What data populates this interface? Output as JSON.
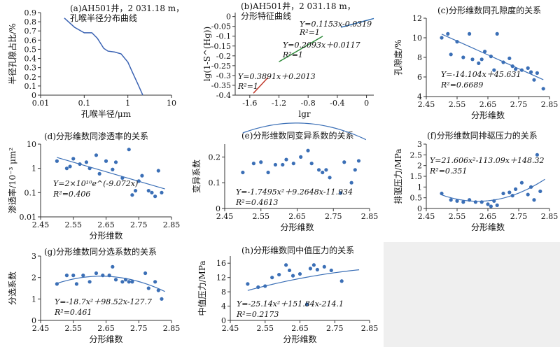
{
  "chart_data": [
    {
      "id": "a",
      "type": "line",
      "title": "(a)AH501井，2 031.18 m，",
      "subtitle": "孔喉半径分布曲线",
      "xlabel": "孔喉半径/μm",
      "ylabel": "半径孔隙占比/%",
      "xscale": "log",
      "xlim": [
        0.01,
        10
      ],
      "ylim": [
        0,
        0.9
      ],
      "xticks": [
        "0.01",
        "0.1",
        "1",
        "10"
      ],
      "yticks": [
        "0",
        "0.1",
        "0.2",
        "0.3",
        "0.4",
        "0.5",
        "0.6",
        "0.7",
        "0.8",
        "0.9"
      ],
      "series": [
        {
          "x": [
            0.035,
            0.06,
            0.1,
            0.15,
            0.2,
            0.28,
            0.35,
            0.5,
            0.7,
            1.0,
            1.3,
            1.7,
            2.2
          ],
          "y": [
            0.84,
            0.74,
            0.68,
            0.68,
            0.62,
            0.51,
            0.48,
            0.47,
            0.45,
            0.36,
            0.24,
            0.12,
            0.0
          ]
        }
      ]
    },
    {
      "id": "b",
      "type": "line",
      "title": "(b)AH501井，2 031.18 m，",
      "subtitle": "分形特征曲线",
      "xlabel": "lgr",
      "ylabel": "lg(1-S^(Hg))",
      "xlim": [
        -1.8,
        0.1
      ],
      "ylim": [
        -0.4,
        0.02
      ],
      "xticks": [
        "-1.6",
        "-1.2",
        "-0.8",
        "-0.4",
        "0"
      ],
      "yticks": [
        "0",
        "-0.05",
        "-0.1",
        "-0.15",
        "-0.2",
        "-0.25",
        "-0.3",
        "-0.35",
        "-0.4"
      ],
      "series": [
        {
          "color": "#c0392b",
          "x": [
            -1.55,
            -1.35
          ],
          "y": [
            -0.39,
            -0.31
          ]
        },
        {
          "color": "#2e8b3a",
          "x": [
            -1.2,
            -0.6
          ],
          "y": [
            -0.23,
            -0.1
          ]
        },
        {
          "color": "#2f6fb5",
          "x": [
            -0.35,
            0.1
          ],
          "y": [
            -0.055,
            -0.01
          ]
        }
      ],
      "equations": [
        {
          "eq": "Y=0.1153x-0.0319",
          "r2": "R²=1"
        },
        {
          "eq": "Y=0.2093x＋0.0117",
          "r2": "R²=1"
        },
        {
          "eq": "Y=0.3891x＋0.2013",
          "r2": "R²=1"
        }
      ]
    },
    {
      "id": "c",
      "type": "scatter",
      "title": "(c)分形维数同孔隙度的关系",
      "xlabel": "分形维数",
      "ylabel": "孔隙度/%",
      "xlim": [
        2.45,
        2.85
      ],
      "ylim": [
        4,
        12
      ],
      "xticks": [
        "2.45",
        "2.55",
        "2.65",
        "2.75",
        "2.85"
      ],
      "yticks": [
        "4",
        "6",
        "8",
        "10",
        "12"
      ],
      "x": [
        2.5,
        2.52,
        2.53,
        2.55,
        2.57,
        2.59,
        2.6,
        2.62,
        2.63,
        2.64,
        2.66,
        2.67,
        2.68,
        2.7,
        2.72,
        2.73,
        2.74,
        2.76,
        2.78,
        2.79,
        2.8,
        2.81,
        2.83
      ],
      "y": [
        10.0,
        10.4,
        8.3,
        9.6,
        8.0,
        10.4,
        7.8,
        7.4,
        7.8,
        8.6,
        8.1,
        6.7,
        10.4,
        7.5,
        7.9,
        7.1,
        6.8,
        6.7,
        6.9,
        6.5,
        5.7,
        6.4,
        4.8
      ],
      "fit": {
        "type": "linear",
        "a": -14.104,
        "b": 45.631,
        "x": [
          2.5,
          2.83
        ]
      },
      "equation": "Y=-14.104x＋45.631",
      "r2": "R²=0.6689"
    },
    {
      "id": "d",
      "type": "scatter",
      "title": "(d)分形维数同渗透率的关系",
      "xlabel": "分形维数",
      "ylabel": "渗透率/10⁻³ μm²",
      "yscale": "log",
      "xlim": [
        2.45,
        2.85
      ],
      "ylim": [
        0.01,
        10
      ],
      "xticks": [
        "2.45",
        "2.55",
        "2.65",
        "2.75",
        "2.85"
      ],
      "yticks": [
        "0.01",
        "0.1",
        "1",
        "10"
      ],
      "x": [
        2.5,
        2.53,
        2.54,
        2.55,
        2.57,
        2.59,
        2.6,
        2.62,
        2.63,
        2.65,
        2.67,
        2.68,
        2.7,
        2.72,
        2.73,
        2.74,
        2.75,
        2.76,
        2.78,
        2.79,
        2.8,
        2.81,
        2.82
      ],
      "y": [
        2.0,
        1.0,
        1.2,
        2.5,
        1.5,
        1.8,
        1.0,
        3.5,
        0.6,
        2.0,
        0.9,
        1.8,
        0.4,
        6.0,
        0.08,
        0.12,
        0.3,
        0.5,
        0.12,
        0.1,
        0.07,
        0.8,
        0.1
      ],
      "fit": {
        "type": "exp",
        "a": 20000000000,
        "b": -9.072,
        "x": [
          2.5,
          2.83
        ]
      },
      "equation": "Y=2×10¹⁰e^(-9.072x)",
      "r2": "R²=0.406"
    },
    {
      "id": "e",
      "type": "scatter",
      "title": "(e)分形维数同变异系数的关系",
      "xlabel": "分形维数",
      "ylabel": "变异系数",
      "xlim": [
        2.45,
        2.85
      ],
      "ylim": [
        0,
        0.25
      ],
      "xticks": [
        "2.45",
        "2.55",
        "2.65",
        "2.75",
        "2.85"
      ],
      "yticks": [
        "0",
        "0.1",
        "0.2"
      ],
      "x": [
        2.5,
        2.53,
        2.55,
        2.57,
        2.59,
        2.61,
        2.62,
        2.64,
        2.66,
        2.68,
        2.69,
        2.71,
        2.72,
        2.73,
        2.74,
        2.77,
        2.78,
        2.8,
        2.81,
        2.82
      ],
      "y": [
        0.14,
        0.175,
        0.18,
        0.14,
        0.17,
        0.17,
        0.19,
        0.175,
        0.2,
        0.225,
        0.175,
        0.15,
        0.14,
        0.15,
        0.12,
        0.06,
        0.18,
        0.1,
        0.15,
        0.185
      ],
      "fit": {
        "type": "poly2",
        "a": -1.7495,
        "b": 9.2648,
        "c": -11.934,
        "x": [
          2.5,
          2.84
        ]
      },
      "equation": "Y=-1.7495x²＋9.2648x-11.934",
      "r2": "R²=0.4613"
    },
    {
      "id": "f",
      "type": "scatter",
      "title": "(f)分形维数同排驱压力的关系",
      "xlabel": "分形维数",
      "ylabel": "排驱压力/MPa",
      "xlim": [
        2.45,
        2.85
      ],
      "ylim": [
        0,
        3
      ],
      "xticks": [
        "2.45",
        "2.55",
        "2.65",
        "2.75",
        "2.85"
      ],
      "yticks": [
        "0",
        "0.5",
        "1",
        "1.5",
        "2",
        "2.5",
        "3"
      ],
      "x": [
        2.5,
        2.53,
        2.55,
        2.57,
        2.59,
        2.61,
        2.63,
        2.65,
        2.66,
        2.67,
        2.68,
        2.7,
        2.72,
        2.73,
        2.74,
        2.76,
        2.78,
        2.79,
        2.8,
        2.81,
        2.82
      ],
      "y": [
        0.7,
        0.4,
        0.35,
        0.3,
        0.4,
        0.3,
        0.3,
        0.2,
        0.1,
        0.35,
        0.15,
        0.7,
        0.75,
        0.6,
        0.9,
        1.2,
        0.65,
        1.0,
        0.4,
        2.5,
        0.8
      ],
      "fit": {
        "type": "poly2",
        "a": 21.606,
        "b": -113.09,
        "c": 148.32,
        "x": [
          2.5,
          2.835
        ]
      },
      "equation": "Y=21.606x²-113.09x＋148.32",
      "r2": "R²=0.351"
    },
    {
      "id": "g",
      "type": "scatter",
      "title": "(g)分形维数同分选系数的关系",
      "xlabel": "分形维数",
      "ylabel": "分选系数",
      "xlim": [
        2.45,
        2.85
      ],
      "ylim": [
        0,
        3
      ],
      "xticks": [
        "2.45",
        "2.55",
        "2.65",
        "2.75",
        "2.85"
      ],
      "yticks": [
        "0",
        "1",
        "2",
        "3"
      ],
      "x": [
        2.5,
        2.53,
        2.55,
        2.56,
        2.58,
        2.6,
        2.62,
        2.64,
        2.66,
        2.67,
        2.68,
        2.7,
        2.71,
        2.72,
        2.73,
        2.77,
        2.78,
        2.8,
        2.81,
        2.82
      ],
      "y": [
        1.7,
        2.1,
        2.1,
        1.7,
        2.1,
        1.8,
        2.2,
        2.1,
        2.1,
        2.5,
        1.9,
        1.8,
        1.9,
        1.8,
        1.8,
        2.2,
        1.5,
        1.8,
        1.4,
        1.0
      ],
      "fit": {
        "type": "poly2",
        "a": -18.7,
        "b": 98.52,
        "c": -127.7,
        "x": [
          2.5,
          2.83
        ]
      },
      "equation": "Y=-18.7x²＋98.52x-127.7",
      "r2": "R²=0.461"
    },
    {
      "id": "h",
      "type": "scatter",
      "title": "(h)分形维数同中值压力的关系",
      "xlabel": "分形维数",
      "ylabel": "中值压力/MPa",
      "xlim": [
        2.45,
        2.85
      ],
      "ylim": [
        0,
        18
      ],
      "xticks": [
        "2.45",
        "2.55",
        "2.65",
        "2.75",
        "2.85"
      ],
      "yticks": [
        "0",
        "4",
        "8",
        "12",
        "16"
      ],
      "x": [
        2.5,
        2.53,
        2.55,
        2.57,
        2.59,
        2.61,
        2.62,
        2.63,
        2.65,
        2.67,
        2.68,
        2.69,
        2.7,
        2.72,
        2.74,
        2.77
      ],
      "y": [
        10.2,
        9.3,
        9.6,
        12.0,
        12.8,
        15.5,
        14.0,
        12.5,
        13.0,
        4.5,
        14.5,
        15.5,
        14.2,
        15.0,
        14.0,
        11.0
      ],
      "fit": {
        "type": "poly2",
        "a": -25.14,
        "b": 151.84,
        "c": -214.1,
        "x": [
          2.5,
          2.82
        ]
      },
      "equation": "Y=-25.14x²＋151.84x-214.1",
      "r2": "R²=0.2173"
    }
  ]
}
